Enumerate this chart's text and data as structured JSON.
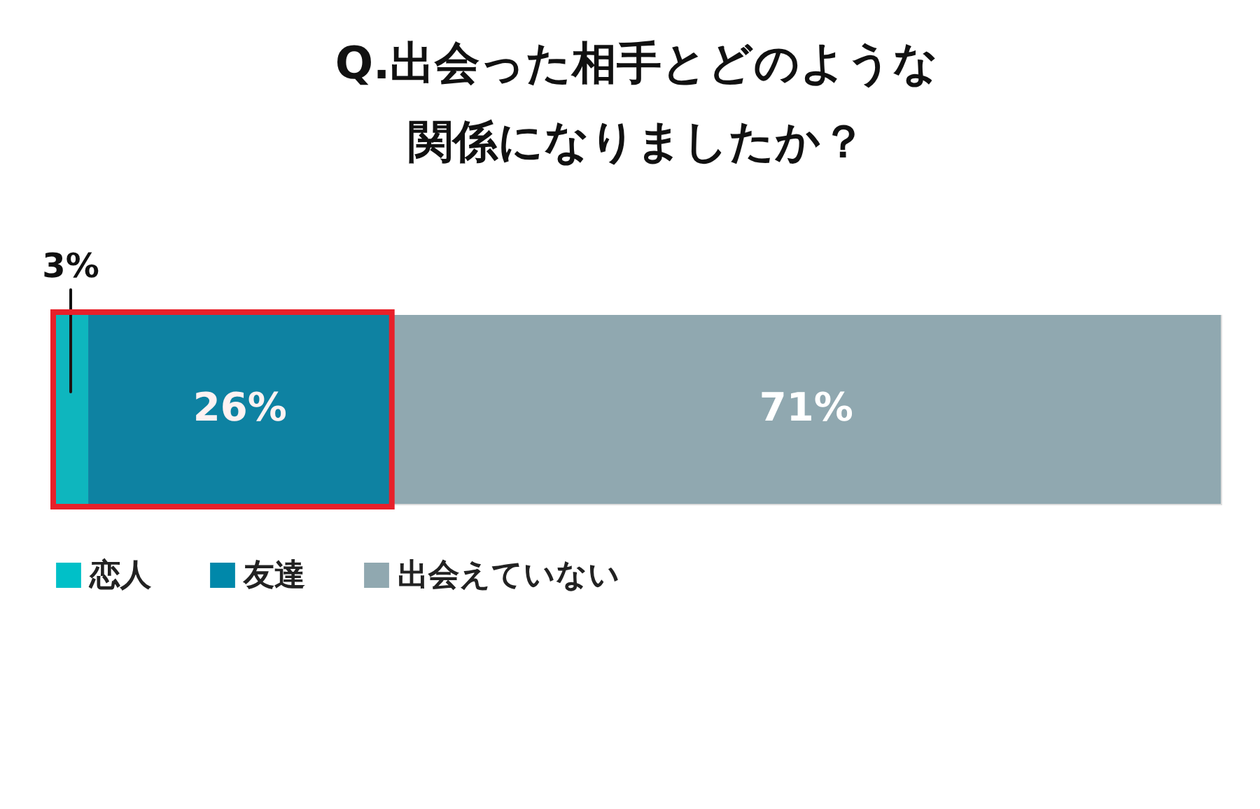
{
  "chart_data": {
    "type": "bar",
    "title": "Q.出会った相手とどのような関係になりましたか？",
    "categories": [
      null
    ],
    "orientation": "horizontal",
    "stacked": true,
    "legend": "bottom left",
    "series": [
      {
        "name": "恋人",
        "color": "#00c0c8",
        "values": [
          3
        ],
        "value_labels": [
          "3%"
        ]
      },
      {
        "name": "友達",
        "color": "#0088aa",
        "values": [
          26
        ],
        "value_labels": [
          "26%"
        ]
      },
      {
        "name": "出会えていない",
        "color": "#90a8b0",
        "values": [
          71
        ],
        "value_labels": [
          "71%"
        ]
      }
    ],
    "bands": [
      {
        "axis": "x",
        "from": 0,
        "to": 29,
        "color": "#e8202a"
      }
    ]
  }
}
